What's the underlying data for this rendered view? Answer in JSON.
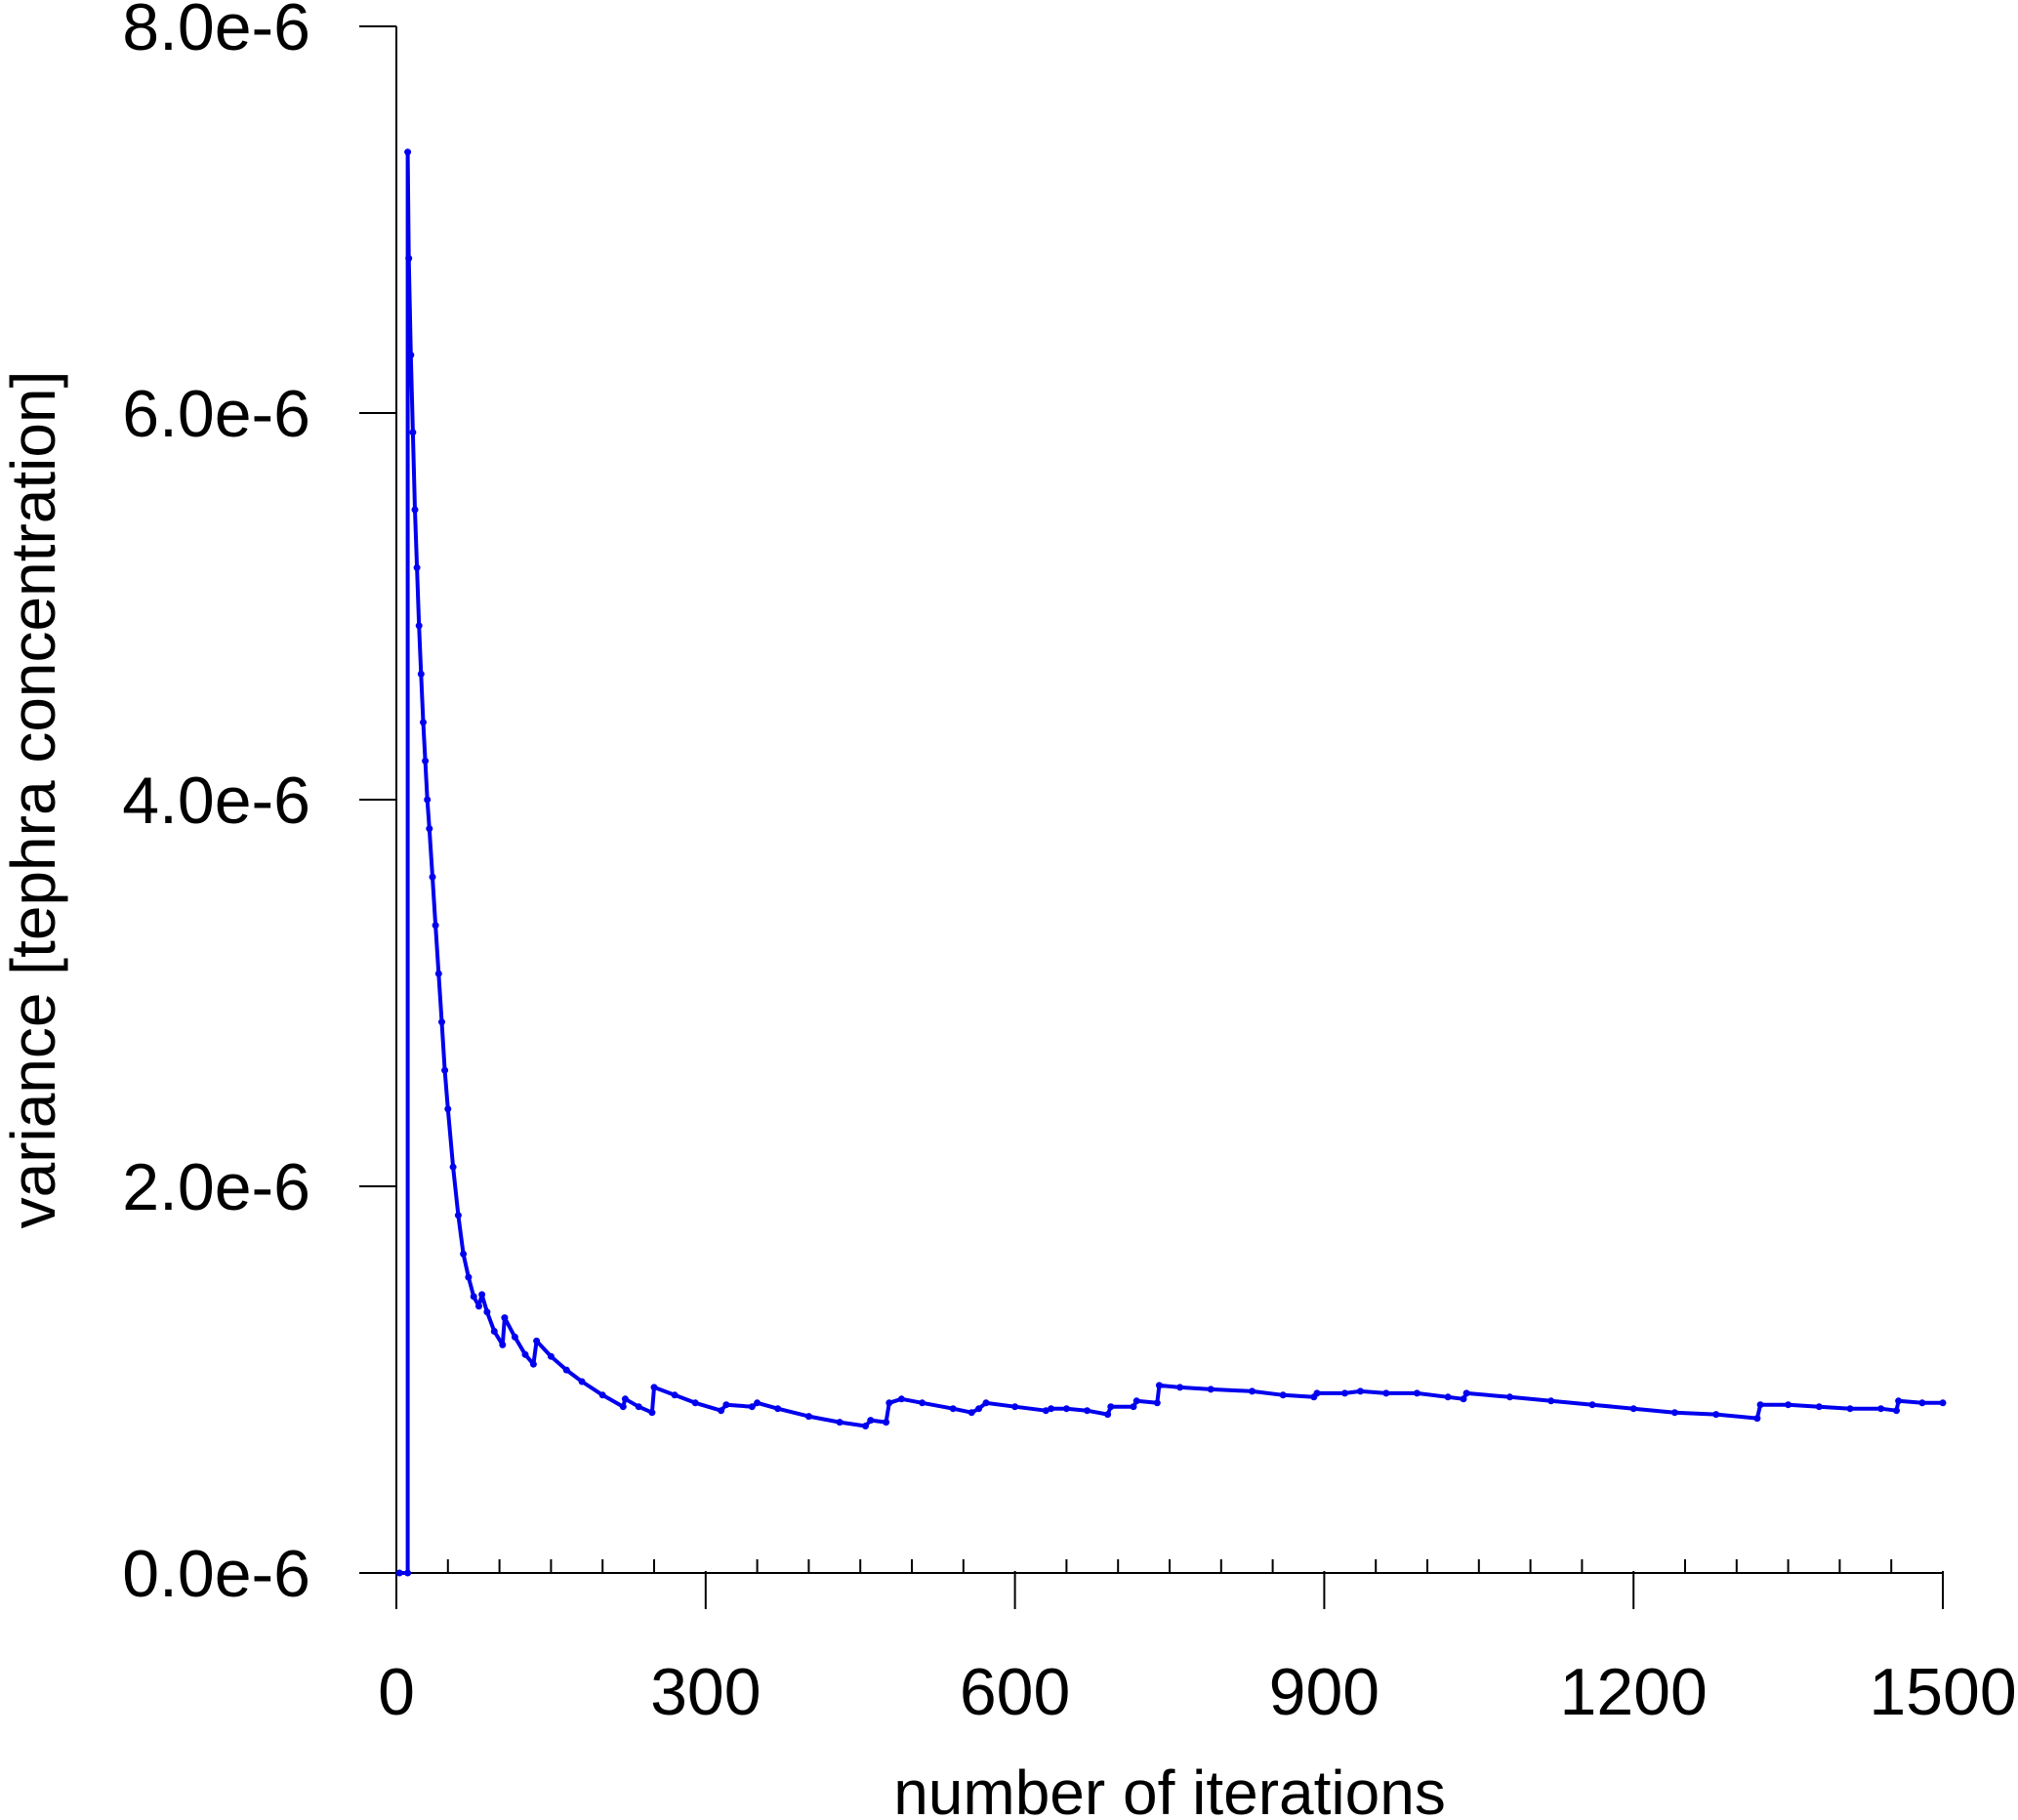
{
  "chart_data": {
    "type": "line",
    "title": "",
    "xlabel": "number of iterations",
    "ylabel": "variance [tephra concentration]",
    "xlim": [
      0,
      1500
    ],
    "ylim": [
      0,
      8e-06
    ],
    "x_ticks": [
      {
        "value": 0,
        "label": "0"
      },
      {
        "value": 300,
        "label": "300"
      },
      {
        "value": 600,
        "label": "600"
      },
      {
        "value": 900,
        "label": "900"
      },
      {
        "value": 1200,
        "label": "1200"
      },
      {
        "value": 1500,
        "label": "1500"
      }
    ],
    "x_minor_step": 50,
    "y_ticks": [
      {
        "value": 0,
        "label": "0.0e-6"
      },
      {
        "value": 2e-06,
        "label": "2.0e-6"
      },
      {
        "value": 4e-06,
        "label": "4.0e-6"
      },
      {
        "value": 6e-06,
        "label": "6.0e-6"
      },
      {
        "value": 8e-06,
        "label": "8.0e-6"
      }
    ],
    "grid": false,
    "legend": "none",
    "series": [
      {
        "color": "#0000ee",
        "marker": "dot",
        "points": [
          [
            3,
            0
          ],
          [
            11,
            0
          ],
          [
            11,
            7.35e-06
          ],
          [
            12,
            6.8e-06
          ],
          [
            14,
            6.3e-06
          ],
          [
            16,
            5.9e-06
          ],
          [
            18,
            5.5e-06
          ],
          [
            20,
            5.2e-06
          ],
          [
            22,
            4.9e-06
          ],
          [
            24,
            4.65e-06
          ],
          [
            26,
            4.4e-06
          ],
          [
            28,
            4.2e-06
          ],
          [
            30,
            4e-06
          ],
          [
            32,
            3.85e-06
          ],
          [
            35,
            3.6e-06
          ],
          [
            38,
            3.35e-06
          ],
          [
            41,
            3.1e-06
          ],
          [
            44,
            2.85e-06
          ],
          [
            47,
            2.6e-06
          ],
          [
            50,
            2.4e-06
          ],
          [
            55,
            2.1e-06
          ],
          [
            60,
            1.85e-06
          ],
          [
            65,
            1.65e-06
          ],
          [
            70,
            1.53e-06
          ],
          [
            75,
            1.43e-06
          ],
          [
            80,
            1.38e-06
          ],
          [
            83,
            1.44e-06
          ],
          [
            88,
            1.35e-06
          ],
          [
            95,
            1.25e-06
          ],
          [
            103,
            1.18e-06
          ],
          [
            105,
            1.32e-06
          ],
          [
            115,
            1.22e-06
          ],
          [
            125,
            1.13e-06
          ],
          [
            133,
            1.08e-06
          ],
          [
            136,
            1.2e-06
          ],
          [
            150,
            1.12e-06
          ],
          [
            165,
            1.05e-06
          ],
          [
            180,
            9.9e-07
          ],
          [
            200,
            9.2e-07
          ],
          [
            220,
            8.6e-07
          ],
          [
            222,
            9e-07
          ],
          [
            235,
            8.6e-07
          ],
          [
            248,
            8.3e-07
          ],
          [
            250,
            9.6e-07
          ],
          [
            270,
            9.2e-07
          ],
          [
            290,
            8.8e-07
          ],
          [
            315,
            8.4e-07
          ],
          [
            320,
            8.7e-07
          ],
          [
            345,
            8.6e-07
          ],
          [
            350,
            8.8e-07
          ],
          [
            370,
            8.5e-07
          ],
          [
            400,
            8.1e-07
          ],
          [
            430,
            7.8e-07
          ],
          [
            455,
            7.6e-07
          ],
          [
            460,
            7.9e-07
          ],
          [
            475,
            7.8e-07
          ],
          [
            478,
            8.8e-07
          ],
          [
            490,
            9e-07
          ],
          [
            510,
            8.8e-07
          ],
          [
            540,
            8.5e-07
          ],
          [
            558,
            8.3e-07
          ],
          [
            565,
            8.5e-07
          ],
          [
            572,
            8.8e-07
          ],
          [
            600,
            8.6e-07
          ],
          [
            630,
            8.4e-07
          ],
          [
            635,
            8.5e-07
          ],
          [
            650,
            8.5e-07
          ],
          [
            670,
            8.4e-07
          ],
          [
            690,
            8.2e-07
          ],
          [
            693,
            8.6e-07
          ],
          [
            715,
            8.6e-07
          ],
          [
            718,
            8.9e-07
          ],
          [
            738,
            8.8e-07
          ],
          [
            740,
            9.7e-07
          ],
          [
            760,
            9.6e-07
          ],
          [
            790,
            9.5e-07
          ],
          [
            830,
            9.4e-07
          ],
          [
            860,
            9.2e-07
          ],
          [
            890,
            9.1e-07
          ],
          [
            893,
            9.3e-07
          ],
          [
            920,
            9.3e-07
          ],
          [
            935,
            9.4e-07
          ],
          [
            960,
            9.3e-07
          ],
          [
            990,
            9.3e-07
          ],
          [
            1020,
            9.1e-07
          ],
          [
            1035,
            9e-07
          ],
          [
            1038,
            9.3e-07
          ],
          [
            1080,
            9.1e-07
          ],
          [
            1120,
            8.9e-07
          ],
          [
            1160,
            8.7e-07
          ],
          [
            1200,
            8.5e-07
          ],
          [
            1240,
            8.3e-07
          ],
          [
            1280,
            8.2e-07
          ],
          [
            1320,
            8e-07
          ],
          [
            1323,
            8.7e-07
          ],
          [
            1350,
            8.7e-07
          ],
          [
            1380,
            8.6e-07
          ],
          [
            1410,
            8.5e-07
          ],
          [
            1440,
            8.5e-07
          ],
          [
            1455,
            8.4e-07
          ],
          [
            1457,
            8.9e-07
          ],
          [
            1480,
            8.8e-07
          ],
          [
            1500,
            8.8e-07
          ]
        ]
      }
    ]
  }
}
